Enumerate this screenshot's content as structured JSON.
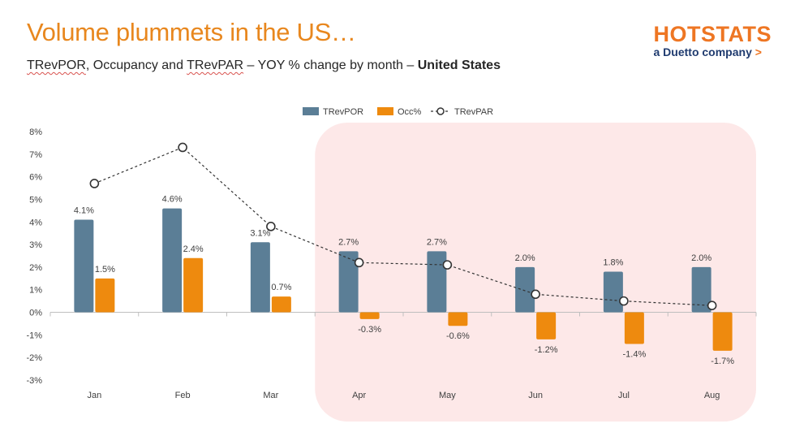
{
  "header": {
    "title": "Volume plummets in the US…",
    "subtitle_parts": [
      "TRevPOR",
      ", Occupancy and ",
      "TRevPAR",
      " – YOY % change by month – ",
      "United States"
    ]
  },
  "logo": {
    "word": "HOTSTATS",
    "tagline": "a Duetto company",
    "tagline_arrow": ">"
  },
  "colors": {
    "trevpor": "#5B7E96",
    "occ": "#EE8A0E",
    "trevpar_line": "#333333",
    "highlight": "#FDE8E8",
    "title": "#E8871E"
  },
  "chart_data": {
    "type": "bar",
    "categories": [
      "Jan",
      "Feb",
      "Mar",
      "Apr",
      "May",
      "Jun",
      "Jul",
      "Aug"
    ],
    "series": [
      {
        "name": "TRevPOR",
        "kind": "bar",
        "values": [
          4.1,
          4.6,
          3.1,
          2.7,
          2.7,
          2.0,
          1.8,
          2.0
        ],
        "labels": [
          "4.1%",
          "4.6%",
          "3.1%",
          "2.7%",
          "2.7%",
          "2.0%",
          "1.8%",
          "2.0%"
        ]
      },
      {
        "name": "Occ%",
        "kind": "bar",
        "values": [
          1.5,
          2.4,
          0.7,
          -0.3,
          -0.6,
          -1.2,
          -1.4,
          -1.7
        ],
        "labels": [
          "1.5%",
          "2.4%",
          "0.7%",
          "-0.3%",
          "-0.6%",
          "-1.2%",
          "-1.4%",
          "-1.7%"
        ]
      },
      {
        "name": "TRevPAR",
        "kind": "line",
        "style": "dashed-with-open-circle-markers",
        "values": [
          5.7,
          7.3,
          3.8,
          2.2,
          2.1,
          0.8,
          0.5,
          0.3
        ]
      }
    ],
    "y_ticks": [
      "8%",
      "7%",
      "6%",
      "5%",
      "4%",
      "3%",
      "2%",
      "1%",
      "0%",
      "-1%",
      "-2%",
      "-3%"
    ],
    "ylim": [
      -3,
      8
    ],
    "legend": "top-center",
    "grid": false,
    "highlight_categories": [
      "Apr",
      "May",
      "Jun",
      "Jul",
      "Aug"
    ]
  }
}
